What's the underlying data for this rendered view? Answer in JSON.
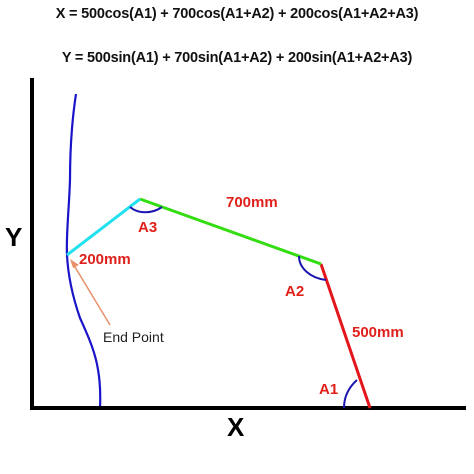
{
  "equations": {
    "x": "X = 500cos(A1) + 700cos(A1+A2) + 200cos(A1+A2+A3)",
    "y": "Y = 500sin(A1) + 700sin(A1+A2) + 200sin(A1+A2+A3)"
  },
  "axes": {
    "x_label": "X",
    "y_label": "Y"
  },
  "links": [
    {
      "length_label": "500mm",
      "color": "#e3171b"
    },
    {
      "length_label": "700mm",
      "color": "#33dd11"
    },
    {
      "length_label": "200mm",
      "color": "#22e0ee"
    }
  ],
  "angles": [
    "A1",
    "A2",
    "A3"
  ],
  "annotation": {
    "end_point": "End Point",
    "arrow_color": "#e8906a"
  },
  "colors": {
    "axis": "#000000",
    "angle_arc": "#1a14b0",
    "path_curve": "#1a14c8"
  }
}
